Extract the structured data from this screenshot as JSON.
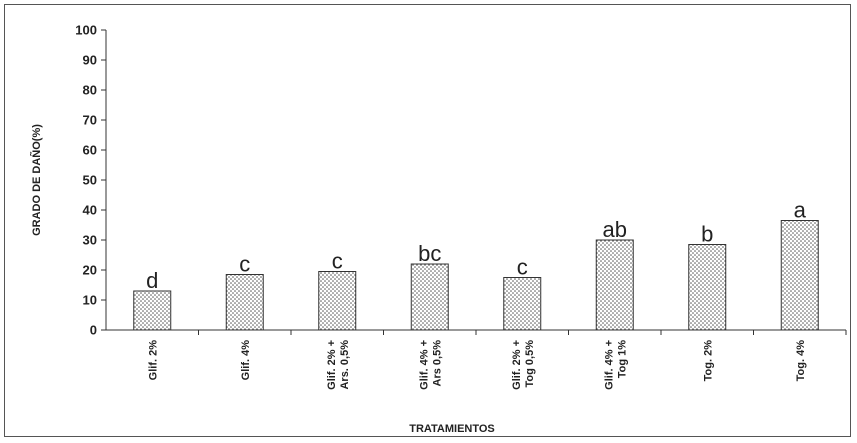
{
  "chart_data": {
    "type": "bar",
    "title": "",
    "xlabel": "TRATAMIENTOS",
    "ylabel": "GRADO DE DAÑO(%)",
    "ylim": [
      0,
      100
    ],
    "yticks": [
      0,
      10,
      20,
      30,
      40,
      50,
      60,
      70,
      80,
      90,
      100
    ],
    "grid": false,
    "bar_fill": "dotted",
    "categories": [
      [
        "Glif. 2%"
      ],
      [
        "Glif. 4%"
      ],
      [
        "Glif. 2% +",
        "Ars. 0,5%"
      ],
      [
        "Glif. 4% +",
        "Ars 0,5%"
      ],
      [
        "Glif. 2% +",
        "Tog 0,5%"
      ],
      [
        "Glif. 4% +",
        "Tog 1%"
      ],
      [
        "Tog. 2%"
      ],
      [
        "Tog. 4%"
      ]
    ],
    "values": [
      13,
      18.5,
      19.5,
      22,
      17.5,
      30,
      28.5,
      36.5
    ],
    "annotations": [
      "d",
      "c",
      "c",
      "bc",
      "c",
      "ab",
      "b",
      "a"
    ]
  }
}
